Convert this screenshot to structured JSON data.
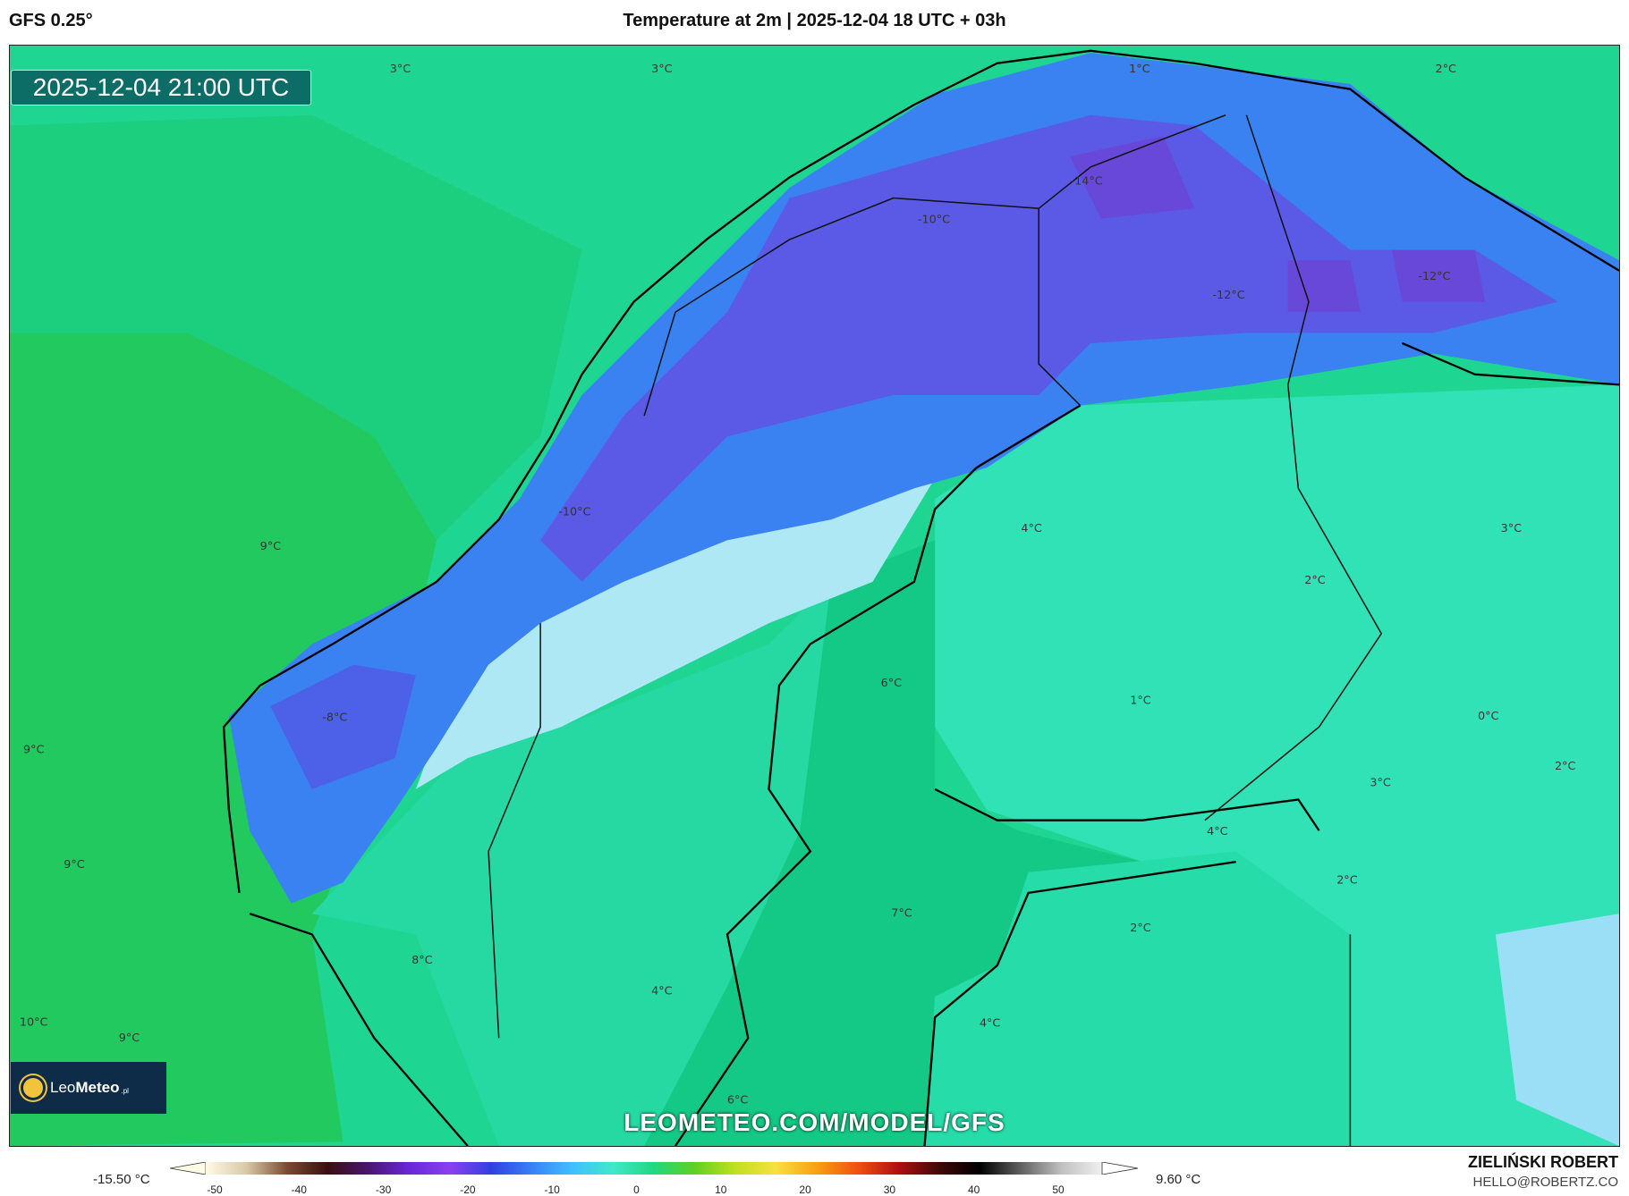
{
  "header": {
    "model": "GFS 0.25°",
    "title": "Temperature at 2m | 2025-12-04 18 UTC + 03h"
  },
  "map": {
    "valid_time": "2025-12-04 21:00 UTC",
    "watermark": "LEOMETEO.COM/MODEL/GFS",
    "logo": {
      "name": "LeoMeteo",
      "part1": "Leo",
      "part2": "Meteo",
      "suffix": ".pl"
    },
    "labels": [
      "3°C",
      "3°C",
      "1°C",
      "2°C",
      "-14°C",
      "-10°C",
      "-12°C",
      "-12°C",
      "9°C",
      "-10°C",
      "4°C",
      "3°C",
      "2°C",
      "6°C",
      "1°C",
      "0°C",
      "-8°C",
      "9°C",
      "3°C",
      "2°C",
      "4°C",
      "9°C",
      "2°C",
      "7°C",
      "2°C",
      "8°C",
      "4°C",
      "4°C",
      "10°C",
      "9°C",
      "6°C"
    ]
  },
  "colorbar": {
    "min_label": "-15.50 °C",
    "max_label": "9.60 °C",
    "ticks": [
      "-50",
      "-40",
      "-30",
      "-20",
      "-10",
      "0",
      "10",
      "20",
      "30",
      "40",
      "50"
    ],
    "colors": [
      "#fffbe6",
      "#d9c8a8",
      "#7a4a30",
      "#3a0f10",
      "#4a1670",
      "#6a28d8",
      "#8a40f0",
      "#3040e0",
      "#3a80f8",
      "#40c0ff",
      "#40e8c8",
      "#20d880",
      "#60d020",
      "#c0e020",
      "#f8e040",
      "#f8a010",
      "#f05010",
      "#b01010",
      "#400808",
      "#000000",
      "#606060",
      "#c0c0c0",
      "#f0f0f0"
    ]
  },
  "credits": {
    "author": "ZIELIŃSKI ROBERT",
    "email": "HELLO@ROBERTZ.CO"
  }
}
